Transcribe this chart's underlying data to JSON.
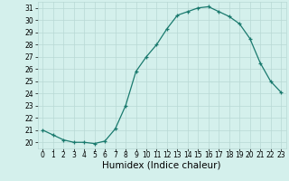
{
  "x": [
    0,
    1,
    2,
    3,
    4,
    5,
    6,
    7,
    8,
    9,
    10,
    11,
    12,
    13,
    14,
    15,
    16,
    17,
    18,
    19,
    20,
    21,
    22,
    23
  ],
  "y": [
    21.0,
    20.6,
    20.2,
    20.0,
    20.0,
    19.9,
    20.1,
    21.1,
    23.0,
    25.8,
    27.0,
    28.0,
    29.3,
    30.4,
    30.7,
    31.0,
    31.1,
    30.7,
    30.3,
    29.7,
    28.5,
    26.5,
    25.0,
    24.1
  ],
  "xlabel": "Humidex (Indice chaleur)",
  "ylim": [
    19.5,
    31.5
  ],
  "xlim": [
    -0.5,
    23.5
  ],
  "yticks": [
    20,
    21,
    22,
    23,
    24,
    25,
    26,
    27,
    28,
    29,
    30,
    31
  ],
  "xticks": [
    0,
    1,
    2,
    3,
    4,
    5,
    6,
    7,
    8,
    9,
    10,
    11,
    12,
    13,
    14,
    15,
    16,
    17,
    18,
    19,
    20,
    21,
    22,
    23
  ],
  "line_color": "#1a7a6e",
  "marker": "+",
  "bg_color": "#d4f0ec",
  "grid_color": "#b8d8d4",
  "tick_label_fontsize": 5.5,
  "xlabel_fontsize": 7.5,
  "linewidth": 0.9,
  "markersize": 3.5,
  "markeredgewidth": 0.9
}
